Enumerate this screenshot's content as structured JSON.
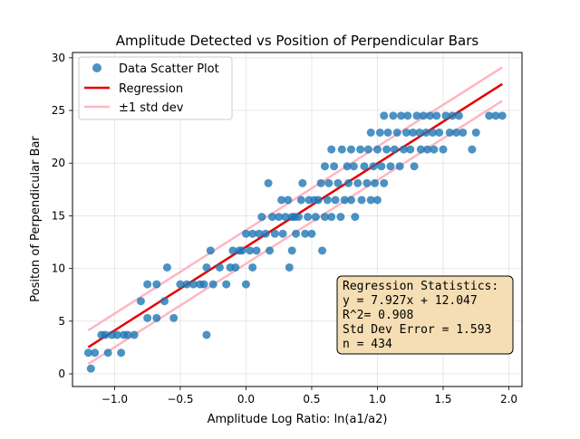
{
  "chart_data": {
    "type": "scatter",
    "title": "Amplitude Detected vs Position of Perpendicular Bars",
    "xlabel": "Amplitude Log Ratio: ln(a1/a2)",
    "ylabel": "Positon of Perpendicular Bar",
    "xlim": [
      -1.32,
      2.1
    ],
    "ylim": [
      -1.2,
      30.5
    ],
    "x_ticks": [
      -1.0,
      -0.5,
      0.0,
      0.5,
      1.0,
      1.5,
      2.0
    ],
    "x_tick_labels": [
      "−1.0",
      "−0.5",
      "0.0",
      "0.5",
      "1.0",
      "1.5",
      "2.0"
    ],
    "y_ticks": [
      0,
      5,
      10,
      15,
      20,
      25,
      30
    ],
    "y_tick_labels": [
      "0",
      "5",
      "10",
      "15",
      "20",
      "25",
      "30"
    ],
    "grid": true,
    "legend_position": "top-left",
    "legend": [
      {
        "label": "Data Scatter Plot",
        "kind": "marker",
        "color": "#1f77b4"
      },
      {
        "label": "Regression",
        "kind": "line",
        "color": "#e60000"
      },
      {
        "label": "±1 std dev",
        "kind": "line",
        "color": "#ffb6c1"
      }
    ],
    "regression": {
      "slope": 7.927,
      "intercept": 12.047,
      "std_dev": 1.593,
      "x_range": [
        -1.2,
        1.95
      ]
    },
    "stats_box": [
      "Regression Statistics:",
      "y = 7.927x + 12.047",
      "R^2= 0.908",
      "Std Dev Error = 1.593",
      "n = 434"
    ],
    "series": [
      {
        "name": "Data Scatter Plot",
        "color": "#1f77b4",
        "points": [
          [
            -1.2,
            2.0
          ],
          [
            -1.18,
            0.5
          ],
          [
            -1.15,
            2.0
          ],
          [
            -1.1,
            3.7
          ],
          [
            -1.07,
            3.7
          ],
          [
            -1.05,
            2.0
          ],
          [
            -1.02,
            3.7
          ],
          [
            -0.98,
            3.7
          ],
          [
            -0.95,
            2.0
          ],
          [
            -0.93,
            3.7
          ],
          [
            -0.9,
            3.7
          ],
          [
            -0.85,
            3.7
          ],
          [
            -0.8,
            6.9
          ],
          [
            -0.75,
            5.3
          ],
          [
            -0.75,
            8.5
          ],
          [
            -0.68,
            8.5
          ],
          [
            -0.68,
            5.3
          ],
          [
            -0.62,
            6.9
          ],
          [
            -0.6,
            10.1
          ],
          [
            -0.55,
            5.3
          ],
          [
            -0.5,
            8.5
          ],
          [
            -0.45,
            8.5
          ],
          [
            -0.4,
            8.5
          ],
          [
            -0.35,
            8.5
          ],
          [
            -0.32,
            8.5
          ],
          [
            -0.3,
            3.7
          ],
          [
            -0.3,
            10.1
          ],
          [
            -0.27,
            11.7
          ],
          [
            -0.25,
            8.5
          ],
          [
            -0.2,
            10.1
          ],
          [
            -0.15,
            8.5
          ],
          [
            -0.12,
            10.1
          ],
          [
            -0.1,
            11.7
          ],
          [
            -0.08,
            10.1
          ],
          [
            -0.05,
            11.7
          ],
          [
            -0.03,
            11.7
          ],
          [
            0.0,
            8.5
          ],
          [
            0.0,
            13.3
          ],
          [
            0.03,
            11.7
          ],
          [
            0.05,
            13.3
          ],
          [
            0.05,
            10.1
          ],
          [
            0.08,
            11.7
          ],
          [
            0.1,
            13.3
          ],
          [
            0.12,
            14.9
          ],
          [
            0.15,
            13.3
          ],
          [
            0.17,
            18.1
          ],
          [
            0.18,
            11.7
          ],
          [
            0.2,
            14.9
          ],
          [
            0.22,
            13.3
          ],
          [
            0.25,
            14.9
          ],
          [
            0.27,
            16.5
          ],
          [
            0.28,
            13.3
          ],
          [
            0.3,
            14.9
          ],
          [
            0.32,
            16.5
          ],
          [
            0.33,
            10.1
          ],
          [
            0.35,
            11.7
          ],
          [
            0.35,
            14.9
          ],
          [
            0.37,
            14.9
          ],
          [
            0.38,
            13.3
          ],
          [
            0.4,
            14.9
          ],
          [
            0.42,
            16.5
          ],
          [
            0.43,
            18.1
          ],
          [
            0.45,
            13.3
          ],
          [
            0.47,
            14.9
          ],
          [
            0.48,
            16.5
          ],
          [
            0.5,
            13.3
          ],
          [
            0.52,
            16.5
          ],
          [
            0.53,
            14.9
          ],
          [
            0.55,
            16.5
          ],
          [
            0.57,
            18.1
          ],
          [
            0.58,
            11.7
          ],
          [
            0.6,
            14.9
          ],
          [
            0.6,
            19.7
          ],
          [
            0.62,
            16.5
          ],
          [
            0.63,
            18.1
          ],
          [
            0.65,
            14.9
          ],
          [
            0.65,
            21.3
          ],
          [
            0.67,
            19.7
          ],
          [
            0.68,
            16.5
          ],
          [
            0.7,
            18.1
          ],
          [
            0.72,
            14.9
          ],
          [
            0.73,
            21.3
          ],
          [
            0.75,
            16.5
          ],
          [
            0.77,
            19.7
          ],
          [
            0.78,
            18.1
          ],
          [
            0.8,
            16.5
          ],
          [
            0.8,
            21.3
          ],
          [
            0.82,
            19.7
          ],
          [
            0.83,
            14.9
          ],
          [
            0.85,
            18.1
          ],
          [
            0.87,
            21.3
          ],
          [
            0.88,
            16.5
          ],
          [
            0.9,
            19.7
          ],
          [
            0.92,
            18.1
          ],
          [
            0.93,
            21.3
          ],
          [
            0.95,
            16.5
          ],
          [
            0.95,
            22.9
          ],
          [
            0.97,
            19.7
          ],
          [
            0.98,
            18.1
          ],
          [
            1.0,
            21.3
          ],
          [
            1.0,
            16.5
          ],
          [
            1.02,
            22.9
          ],
          [
            1.03,
            19.7
          ],
          [
            1.05,
            18.1
          ],
          [
            1.05,
            24.5
          ],
          [
            1.07,
            21.3
          ],
          [
            1.08,
            22.9
          ],
          [
            1.1,
            19.7
          ],
          [
            1.12,
            24.5
          ],
          [
            1.13,
            21.3
          ],
          [
            1.15,
            22.9
          ],
          [
            1.17,
            19.7
          ],
          [
            1.18,
            24.5
          ],
          [
            1.2,
            21.3
          ],
          [
            1.22,
            22.9
          ],
          [
            1.23,
            24.5
          ],
          [
            1.25,
            21.3
          ],
          [
            1.27,
            22.9
          ],
          [
            1.28,
            19.7
          ],
          [
            1.3,
            24.5
          ],
          [
            1.32,
            22.9
          ],
          [
            1.33,
            21.3
          ],
          [
            1.35,
            24.5
          ],
          [
            1.37,
            22.9
          ],
          [
            1.38,
            21.3
          ],
          [
            1.4,
            24.5
          ],
          [
            1.42,
            22.9
          ],
          [
            1.43,
            21.3
          ],
          [
            1.45,
            24.5
          ],
          [
            1.47,
            22.9
          ],
          [
            1.5,
            21.3
          ],
          [
            1.52,
            24.5
          ],
          [
            1.55,
            22.9
          ],
          [
            1.57,
            24.5
          ],
          [
            1.6,
            22.9
          ],
          [
            1.62,
            24.5
          ],
          [
            1.65,
            22.9
          ],
          [
            1.72,
            21.3
          ],
          [
            1.75,
            22.9
          ],
          [
            1.85,
            24.5
          ],
          [
            1.9,
            24.5
          ],
          [
            1.95,
            24.5
          ]
        ]
      }
    ]
  }
}
